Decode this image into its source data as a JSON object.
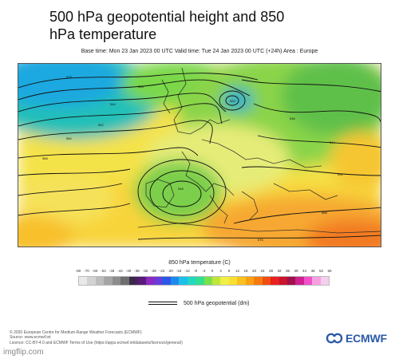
{
  "title": "500 hPa geopotential height and 850 hPa temperature",
  "subtitle": "Base time: Mon 23 Jan 2023 00 UTC Valid time: Tue 24 Jan 2023 00 UTC (+24h) Area : Europe",
  "legend": {
    "title": "850 hPa temperature (C)",
    "ticks": [
      "-80",
      "-70",
      "-60",
      "-52",
      "-48",
      "-44",
      "-40",
      "-36",
      "-32",
      "-28",
      "-24",
      "-20",
      "-16",
      "-12",
      "-8",
      "-4",
      "0",
      "4",
      "8",
      "12",
      "16",
      "20",
      "24",
      "28",
      "32",
      "36",
      "40",
      "44",
      "48",
      "52",
      "56"
    ],
    "colors": [
      "#e9e9e9",
      "#d3d3d3",
      "#bdbdbd",
      "#a5a5a5",
      "#8c8c8c",
      "#6f6f6f",
      "#3c2a4a",
      "#5a1a7a",
      "#8a2bc2",
      "#6a3bd8",
      "#2c56e8",
      "#1e8af0",
      "#1cc0e8",
      "#22d8c0",
      "#30e090",
      "#7ae04a",
      "#c0e63a",
      "#f0f044",
      "#f8e030",
      "#fcc020",
      "#fca014",
      "#f87a10",
      "#f04e10",
      "#e82020",
      "#c8142c",
      "#a0104a",
      "#d02090",
      "#f050c8",
      "#f8a0e0",
      "#f4d0ee"
    ],
    "contour_label": "500 hPa geopotential (dm)"
  },
  "footer": {
    "line1": "© 2020 European Centre for Medium-Range Weather Forecasts (ECMWF)",
    "line2": "Source: www.ecmwf.int",
    "line3": "Licence: CC-BY-4.0 and ECMWF Terms of Use (https://apps.ecmwf.int/datasets/licences/general/)"
  },
  "logo": {
    "text": "ECMWF",
    "icon": "ecmwf-logo-icon"
  },
  "watermark": "imgflip.com"
}
